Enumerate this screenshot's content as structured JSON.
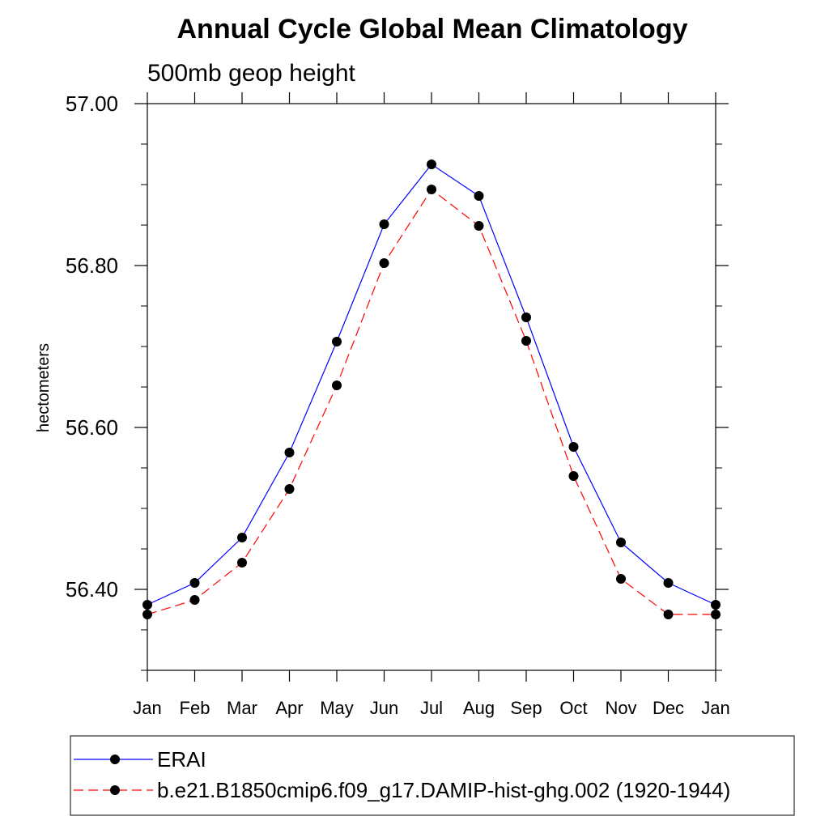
{
  "chart_data": {
    "type": "line",
    "title": "Annual Cycle Global Mean Climatology",
    "subtitle": "500mb geop height",
    "ylabel": "hectometers",
    "ylim": [
      56.3,
      57.0
    ],
    "yticks": [
      {
        "value": 56.4,
        "label": "56.40"
      },
      {
        "value": 56.6,
        "label": "56.60"
      },
      {
        "value": 56.8,
        "label": "56.80"
      },
      {
        "value": 57.0,
        "label": "57.00"
      }
    ],
    "yminor": [
      56.3,
      56.35,
      56.45,
      56.5,
      56.55,
      56.65,
      56.7,
      56.75,
      56.85,
      56.9,
      56.95
    ],
    "categories": [
      "Jan",
      "Feb",
      "Mar",
      "Apr",
      "May",
      "Jun",
      "Jul",
      "Aug",
      "Sep",
      "Oct",
      "Nov",
      "Dec",
      "Jan"
    ],
    "series": [
      {
        "name": "ERAI",
        "color": "#0000ff",
        "dash": "solid",
        "values": [
          56.381,
          56.408,
          56.464,
          56.569,
          56.706,
          56.851,
          56.925,
          56.886,
          56.736,
          56.576,
          56.458,
          56.408,
          56.381
        ]
      },
      {
        "name": "b.e21.B1850cmip6.f09_g17.DAMIP-hist-ghg.002 (1920-1944)",
        "color": "#ff0000",
        "dash": "dashed",
        "values": [
          56.369,
          56.387,
          56.433,
          56.524,
          56.652,
          56.803,
          56.894,
          56.849,
          56.707,
          56.54,
          56.413,
          56.369,
          56.369
        ]
      }
    ],
    "legend": "bottom"
  }
}
